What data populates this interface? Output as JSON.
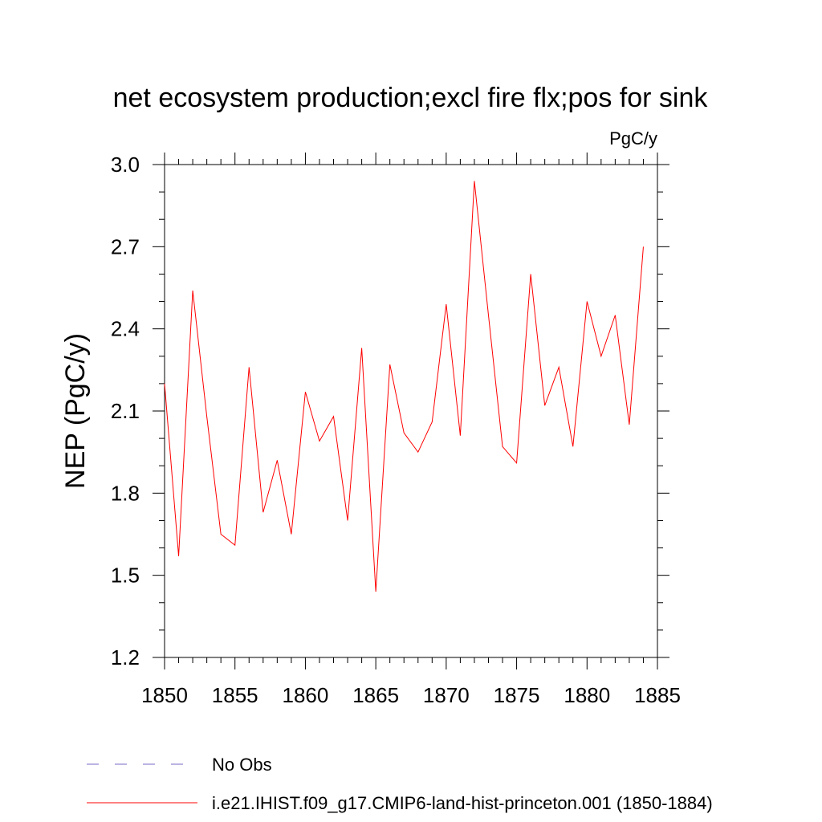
{
  "chart_data": {
    "type": "line",
    "title": "net ecosystem production;excl fire flx;pos for sink",
    "units": "PgC/y",
    "ylabel": "NEP  (PgC/y)",
    "xlabel": "",
    "xlim": [
      1850,
      1885
    ],
    "ylim": [
      1.2,
      3.0
    ],
    "x_ticks": [
      1850,
      1855,
      1860,
      1865,
      1870,
      1875,
      1880,
      1885
    ],
    "x_tick_labels": [
      "1850",
      "1855",
      "1860",
      "1865",
      "1870",
      "1875",
      "1880",
      "1885"
    ],
    "y_ticks": [
      1.2,
      1.5,
      1.8,
      2.1,
      2.4,
      2.7,
      3.0
    ],
    "y_tick_labels": [
      "1.2",
      "1.5",
      "1.8",
      "2.1",
      "2.4",
      "2.7",
      "3.0"
    ],
    "grid": false,
    "legend_position": "bottom",
    "series": [
      {
        "name": "i.e21.IHIST.f09_g17.CMIP6-land-hist-princeton.001 (1850-1884)",
        "color": "#ff0000",
        "style": "solid",
        "x": [
          1850,
          1851,
          1852,
          1853,
          1854,
          1855,
          1856,
          1857,
          1858,
          1859,
          1860,
          1861,
          1862,
          1863,
          1864,
          1865,
          1866,
          1867,
          1868,
          1869,
          1870,
          1871,
          1872,
          1873,
          1874,
          1875,
          1876,
          1877,
          1878,
          1879,
          1880,
          1881,
          1882,
          1883,
          1884
        ],
        "values": [
          2.2,
          1.57,
          2.54,
          2.08,
          1.65,
          1.61,
          2.26,
          1.73,
          1.92,
          1.65,
          2.17,
          1.99,
          2.08,
          1.7,
          2.33,
          1.44,
          2.27,
          2.02,
          1.95,
          2.06,
          2.49,
          2.01,
          2.94,
          2.45,
          1.97,
          1.91,
          2.6,
          2.12,
          2.26,
          1.97,
          2.5,
          2.3,
          2.45,
          2.05,
          2.7
        ]
      }
    ],
    "legend": [
      {
        "label": "No Obs",
        "color": "#7b68c8",
        "style": "dashed"
      },
      {
        "label": "i.e21.IHIST.f09_g17.CMIP6-land-hist-princeton.001 (1850-1884)",
        "color": "#ff0000",
        "style": "solid"
      }
    ]
  }
}
